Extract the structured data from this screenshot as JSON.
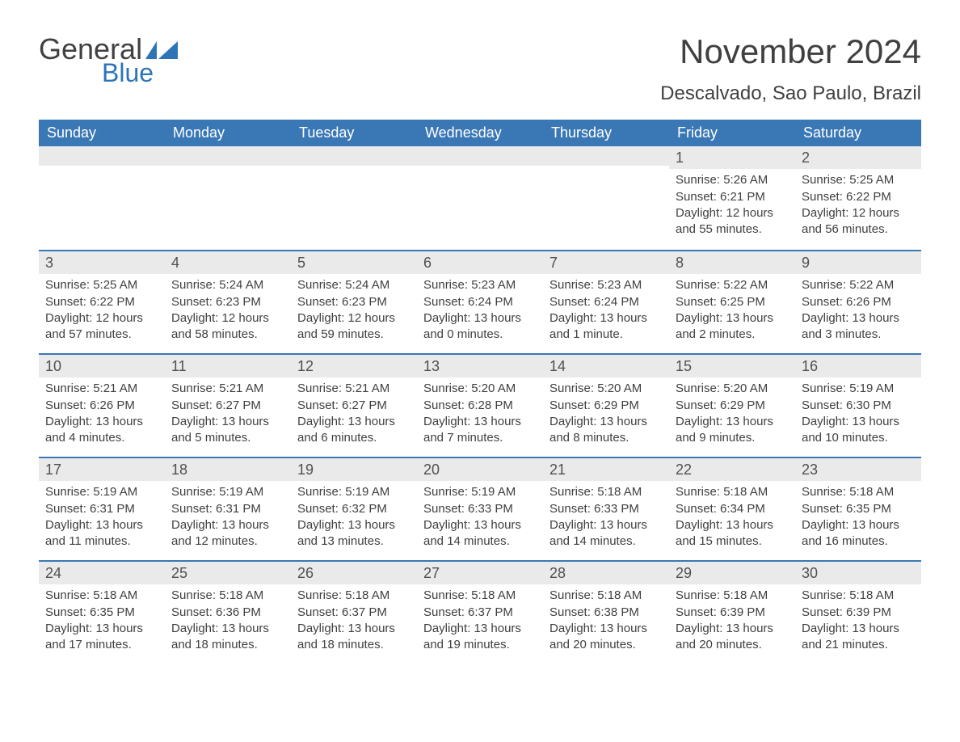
{
  "logo": {
    "word1": "General",
    "word2": "Blue",
    "flag_color": "#2e75b6"
  },
  "title": "November 2024",
  "location": "Descalvado, Sao Paulo, Brazil",
  "colors": {
    "header_bg": "#3a78b5",
    "header_text": "#ffffff",
    "daynum_bg": "#eaeaea",
    "text": "#404040",
    "row_border": "#3a78b5",
    "page_bg": "#ffffff"
  },
  "typography": {
    "title_fontsize": 42,
    "location_fontsize": 24,
    "dayheader_fontsize": 18,
    "daynum_fontsize": 18,
    "body_fontsize": 15
  },
  "layout": {
    "columns": 7,
    "rows": 5,
    "first_day_column_index": 5
  },
  "day_headers": [
    "Sunday",
    "Monday",
    "Tuesday",
    "Wednesday",
    "Thursday",
    "Friday",
    "Saturday"
  ],
  "weeks": [
    [
      null,
      null,
      null,
      null,
      null,
      {
        "num": "1",
        "sunrise": "Sunrise: 5:26 AM",
        "sunset": "Sunset: 6:21 PM",
        "daylight": "Daylight: 12 hours and 55 minutes."
      },
      {
        "num": "2",
        "sunrise": "Sunrise: 5:25 AM",
        "sunset": "Sunset: 6:22 PM",
        "daylight": "Daylight: 12 hours and 56 minutes."
      }
    ],
    [
      {
        "num": "3",
        "sunrise": "Sunrise: 5:25 AM",
        "sunset": "Sunset: 6:22 PM",
        "daylight": "Daylight: 12 hours and 57 minutes."
      },
      {
        "num": "4",
        "sunrise": "Sunrise: 5:24 AM",
        "sunset": "Sunset: 6:23 PM",
        "daylight": "Daylight: 12 hours and 58 minutes."
      },
      {
        "num": "5",
        "sunrise": "Sunrise: 5:24 AM",
        "sunset": "Sunset: 6:23 PM",
        "daylight": "Daylight: 12 hours and 59 minutes."
      },
      {
        "num": "6",
        "sunrise": "Sunrise: 5:23 AM",
        "sunset": "Sunset: 6:24 PM",
        "daylight": "Daylight: 13 hours and 0 minutes."
      },
      {
        "num": "7",
        "sunrise": "Sunrise: 5:23 AM",
        "sunset": "Sunset: 6:24 PM",
        "daylight": "Daylight: 13 hours and 1 minute."
      },
      {
        "num": "8",
        "sunrise": "Sunrise: 5:22 AM",
        "sunset": "Sunset: 6:25 PM",
        "daylight": "Daylight: 13 hours and 2 minutes."
      },
      {
        "num": "9",
        "sunrise": "Sunrise: 5:22 AM",
        "sunset": "Sunset: 6:26 PM",
        "daylight": "Daylight: 13 hours and 3 minutes."
      }
    ],
    [
      {
        "num": "10",
        "sunrise": "Sunrise: 5:21 AM",
        "sunset": "Sunset: 6:26 PM",
        "daylight": "Daylight: 13 hours and 4 minutes."
      },
      {
        "num": "11",
        "sunrise": "Sunrise: 5:21 AM",
        "sunset": "Sunset: 6:27 PM",
        "daylight": "Daylight: 13 hours and 5 minutes."
      },
      {
        "num": "12",
        "sunrise": "Sunrise: 5:21 AM",
        "sunset": "Sunset: 6:27 PM",
        "daylight": "Daylight: 13 hours and 6 minutes."
      },
      {
        "num": "13",
        "sunrise": "Sunrise: 5:20 AM",
        "sunset": "Sunset: 6:28 PM",
        "daylight": "Daylight: 13 hours and 7 minutes."
      },
      {
        "num": "14",
        "sunrise": "Sunrise: 5:20 AM",
        "sunset": "Sunset: 6:29 PM",
        "daylight": "Daylight: 13 hours and 8 minutes."
      },
      {
        "num": "15",
        "sunrise": "Sunrise: 5:20 AM",
        "sunset": "Sunset: 6:29 PM",
        "daylight": "Daylight: 13 hours and 9 minutes."
      },
      {
        "num": "16",
        "sunrise": "Sunrise: 5:19 AM",
        "sunset": "Sunset: 6:30 PM",
        "daylight": "Daylight: 13 hours and 10 minutes."
      }
    ],
    [
      {
        "num": "17",
        "sunrise": "Sunrise: 5:19 AM",
        "sunset": "Sunset: 6:31 PM",
        "daylight": "Daylight: 13 hours and 11 minutes."
      },
      {
        "num": "18",
        "sunrise": "Sunrise: 5:19 AM",
        "sunset": "Sunset: 6:31 PM",
        "daylight": "Daylight: 13 hours and 12 minutes."
      },
      {
        "num": "19",
        "sunrise": "Sunrise: 5:19 AM",
        "sunset": "Sunset: 6:32 PM",
        "daylight": "Daylight: 13 hours and 13 minutes."
      },
      {
        "num": "20",
        "sunrise": "Sunrise: 5:19 AM",
        "sunset": "Sunset: 6:33 PM",
        "daylight": "Daylight: 13 hours and 14 minutes."
      },
      {
        "num": "21",
        "sunrise": "Sunrise: 5:18 AM",
        "sunset": "Sunset: 6:33 PM",
        "daylight": "Daylight: 13 hours and 14 minutes."
      },
      {
        "num": "22",
        "sunrise": "Sunrise: 5:18 AM",
        "sunset": "Sunset: 6:34 PM",
        "daylight": "Daylight: 13 hours and 15 minutes."
      },
      {
        "num": "23",
        "sunrise": "Sunrise: 5:18 AM",
        "sunset": "Sunset: 6:35 PM",
        "daylight": "Daylight: 13 hours and 16 minutes."
      }
    ],
    [
      {
        "num": "24",
        "sunrise": "Sunrise: 5:18 AM",
        "sunset": "Sunset: 6:35 PM",
        "daylight": "Daylight: 13 hours and 17 minutes."
      },
      {
        "num": "25",
        "sunrise": "Sunrise: 5:18 AM",
        "sunset": "Sunset: 6:36 PM",
        "daylight": "Daylight: 13 hours and 18 minutes."
      },
      {
        "num": "26",
        "sunrise": "Sunrise: 5:18 AM",
        "sunset": "Sunset: 6:37 PM",
        "daylight": "Daylight: 13 hours and 18 minutes."
      },
      {
        "num": "27",
        "sunrise": "Sunrise: 5:18 AM",
        "sunset": "Sunset: 6:37 PM",
        "daylight": "Daylight: 13 hours and 19 minutes."
      },
      {
        "num": "28",
        "sunrise": "Sunrise: 5:18 AM",
        "sunset": "Sunset: 6:38 PM",
        "daylight": "Daylight: 13 hours and 20 minutes."
      },
      {
        "num": "29",
        "sunrise": "Sunrise: 5:18 AM",
        "sunset": "Sunset: 6:39 PM",
        "daylight": "Daylight: 13 hours and 20 minutes."
      },
      {
        "num": "30",
        "sunrise": "Sunrise: 5:18 AM",
        "sunset": "Sunset: 6:39 PM",
        "daylight": "Daylight: 13 hours and 21 minutes."
      }
    ]
  ]
}
